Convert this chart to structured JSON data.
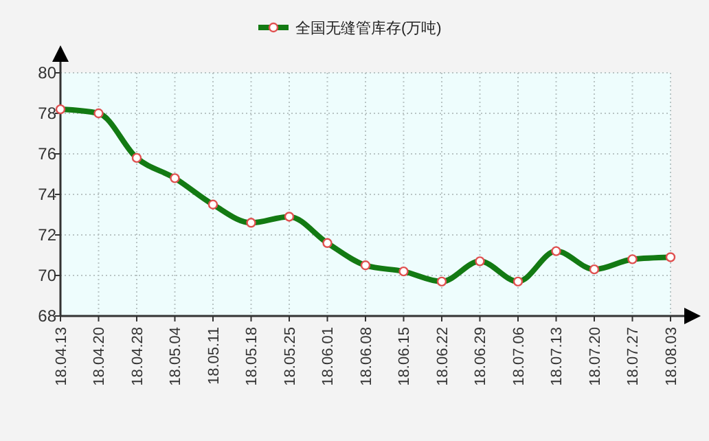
{
  "chart_data": {
    "type": "line",
    "categories": [
      "18.04.13",
      "18.04.20",
      "18.04.28",
      "18.05.04",
      "18.05.11",
      "18.05.18",
      "18.05.25",
      "18.06.01",
      "18.06.08",
      "18.06.15",
      "18.06.22",
      "18.06.29",
      "18.07.06",
      "18.07.13",
      "18.07.20",
      "18.07.27",
      "18.08.03"
    ],
    "series": [
      {
        "name": "全国无缝管库存(万吨)",
        "color": "#137a13",
        "values": [
          78.2,
          78.0,
          75.8,
          74.8,
          73.5,
          72.6,
          72.9,
          71.6,
          70.5,
          70.2,
          69.7,
          70.7,
          69.7,
          71.2,
          70.3,
          70.8,
          70.9
        ]
      }
    ],
    "ylim": [
      68,
      80
    ],
    "yticks": [
      68,
      70,
      72,
      74,
      76,
      78,
      80
    ],
    "grid": true,
    "legend": "top",
    "marker": "circle",
    "line_style": "solid"
  }
}
